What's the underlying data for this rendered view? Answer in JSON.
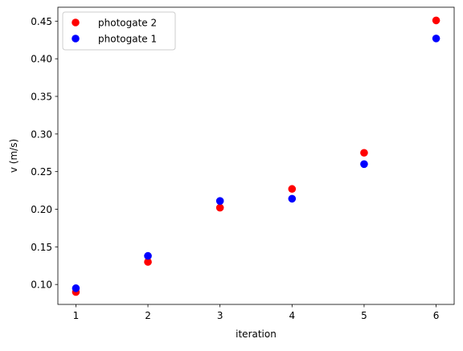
{
  "chart_data": {
    "type": "scatter",
    "title": "",
    "xlabel": "iteration",
    "ylabel": "v (m/s)",
    "xlim": [
      0.75,
      6.25
    ],
    "ylim": [
      0.0735,
      0.4685
    ],
    "x_ticks": [
      1,
      2,
      3,
      4,
      5,
      6
    ],
    "y_ticks": [
      0.1,
      0.15,
      0.2,
      0.25,
      0.3,
      0.35,
      0.4,
      0.45
    ],
    "grid": false,
    "legend_position": "top-left",
    "series": [
      {
        "name": "photogate 2",
        "color": "#ff0000",
        "x": [
          1,
          2,
          3,
          4,
          5,
          6
        ],
        "y": [
          0.09,
          0.13,
          0.202,
          0.227,
          0.275,
          0.451
        ]
      },
      {
        "name": "photogate 1",
        "color": "#0000ff",
        "x": [
          1,
          2,
          3,
          4,
          5,
          6
        ],
        "y": [
          0.095,
          0.138,
          0.211,
          0.214,
          0.26,
          0.427
        ]
      }
    ]
  }
}
